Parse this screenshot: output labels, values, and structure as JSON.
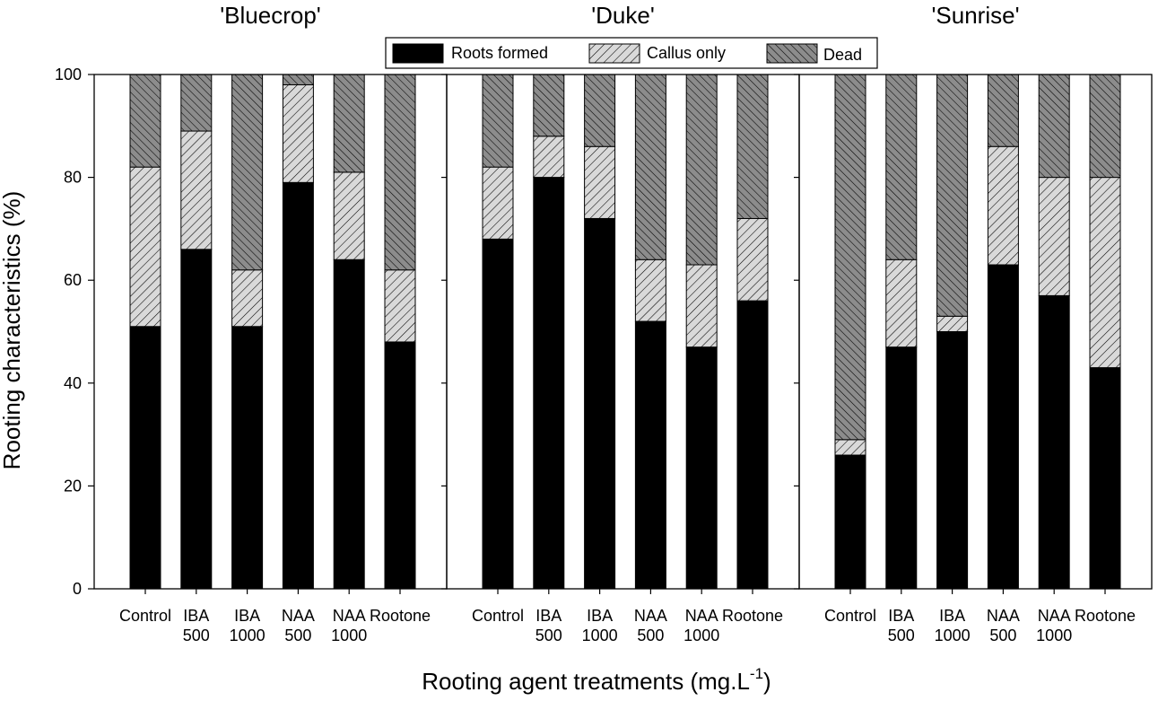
{
  "chart_data": {
    "type": "bar",
    "stacked": true,
    "xlabel": "Rooting agent treatments (mg.L",
    "xlabel_sup": "-1",
    "xlabel_end": ")",
    "ylabel": "Rooting characteristics (%)",
    "ylim": [
      0,
      100
    ],
    "yticks": [
      "0",
      "20",
      "40",
      "60",
      "80",
      "100"
    ],
    "legend": [
      {
        "name": "Roots formed",
        "pattern": "solid-black"
      },
      {
        "name": "Callus only",
        "pattern": "light-hatch"
      },
      {
        "name": "Dead",
        "pattern": "dark-hatch"
      }
    ],
    "categories": [
      [
        "Control"
      ],
      [
        "IBA",
        "500"
      ],
      [
        "IBA",
        "1000"
      ],
      [
        "NAA",
        "500"
      ],
      [
        "NAA",
        "1000"
      ],
      [
        "Rootone"
      ]
    ],
    "panels": [
      {
        "title": "'Bluecrop'",
        "roots": [
          51,
          66,
          51,
          79,
          64,
          48
        ],
        "callus": [
          31,
          23,
          11,
          19,
          17,
          14
        ],
        "dead": [
          18,
          11,
          38,
          2,
          19,
          38
        ]
      },
      {
        "title": "'Duke'",
        "roots": [
          68,
          80,
          72,
          52,
          47,
          56
        ],
        "callus": [
          14,
          8,
          14,
          12,
          16,
          16
        ],
        "dead": [
          18,
          12,
          14,
          36,
          37,
          28
        ]
      },
      {
        "title": "'Sunrise'",
        "roots": [
          26,
          47,
          50,
          63,
          57,
          43
        ],
        "callus": [
          3,
          17,
          3,
          23,
          23,
          37
        ],
        "dead": [
          71,
          36,
          47,
          14,
          20,
          20
        ]
      }
    ]
  }
}
